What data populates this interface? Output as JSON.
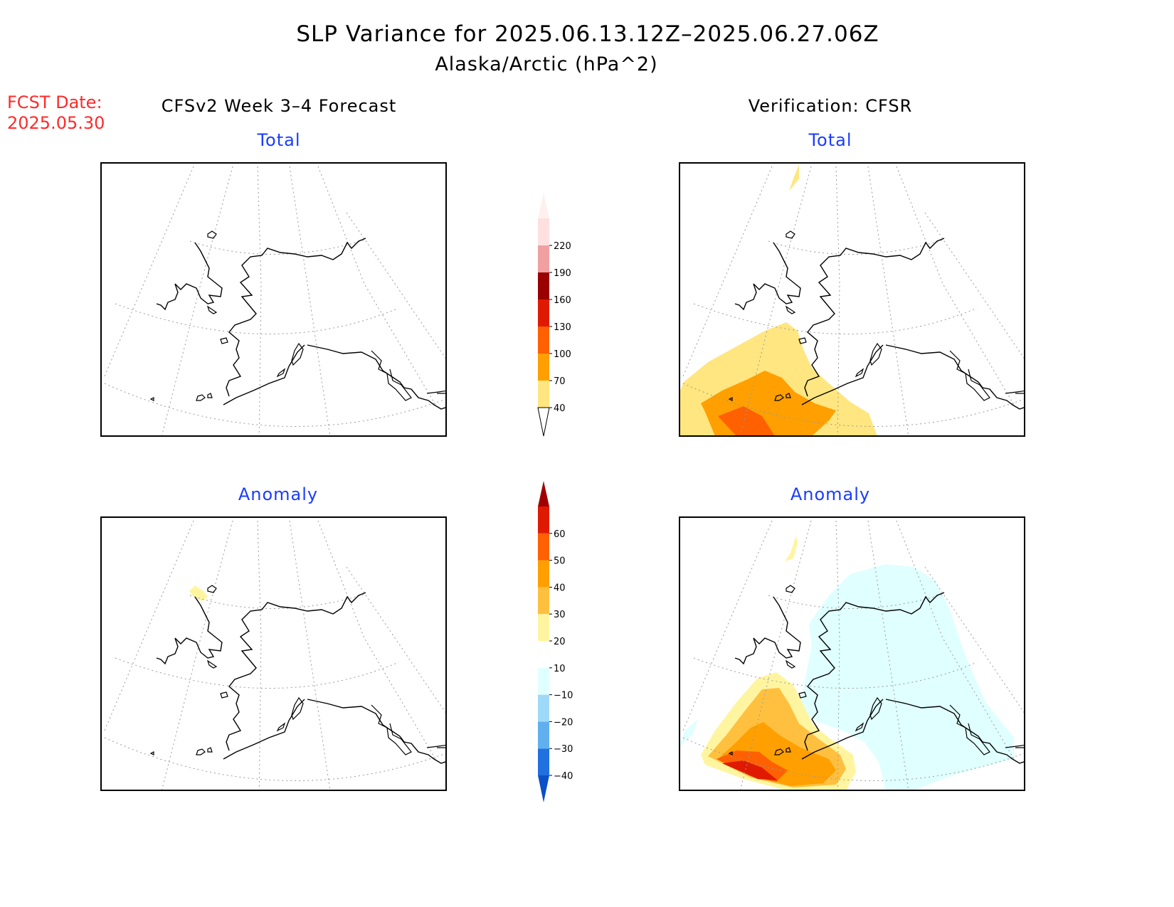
{
  "title": {
    "line1": "SLP Variance for 2025.06.13.12Z–2025.06.27.06Z",
    "line2": "Alaska/Arctic (hPa^2)"
  },
  "fcst_date": {
    "label": "FCST Date:",
    "value": "2025.05.30"
  },
  "colors": {
    "title": "#000000",
    "panel_title": "#1a3cff",
    "fcst": "#ff2a2a",
    "coast": "#000000",
    "grid": "#9a9a9a"
  },
  "columns": {
    "left": "CFSv2 Week 3–4 Forecast",
    "right": "Verification: CFSR"
  },
  "panels": [
    {
      "id": "fcst-total",
      "title": "Total",
      "row": "total",
      "col": "left"
    },
    {
      "id": "verif-total",
      "title": "Total",
      "row": "total",
      "col": "right"
    },
    {
      "id": "fcst-anomaly",
      "title": "Anomaly",
      "row": "anomaly",
      "col": "left"
    },
    {
      "id": "verif-anomaly",
      "title": "Anomaly",
      "row": "anomaly",
      "col": "right"
    }
  ],
  "colorbars": {
    "total": {
      "labels": [
        "40",
        "70",
        "100",
        "130",
        "160",
        "190",
        "220"
      ],
      "bins": [
        "#ffe680",
        "#ff9f00",
        "#ff6000",
        "#e01a00",
        "#9a0000",
        "#f0a0a0",
        "#ffe0e0"
      ],
      "below_color": "#ffffff",
      "above_color": "#fff0f0"
    },
    "anomaly": {
      "labels": [
        "−40",
        "−30",
        "−20",
        "−10",
        "10",
        "20",
        "30",
        "40",
        "50",
        "60"
      ],
      "bins": [
        "#2070e0",
        "#60b0f0",
        "#a0d8f8",
        "#e0ffff",
        "#ffffff",
        "#fff5a0",
        "#ffc040",
        "#ff9f00",
        "#ff6000",
        "#e01a00"
      ],
      "below_color": "#0a50c8",
      "above_color": "#a00000"
    }
  }
}
